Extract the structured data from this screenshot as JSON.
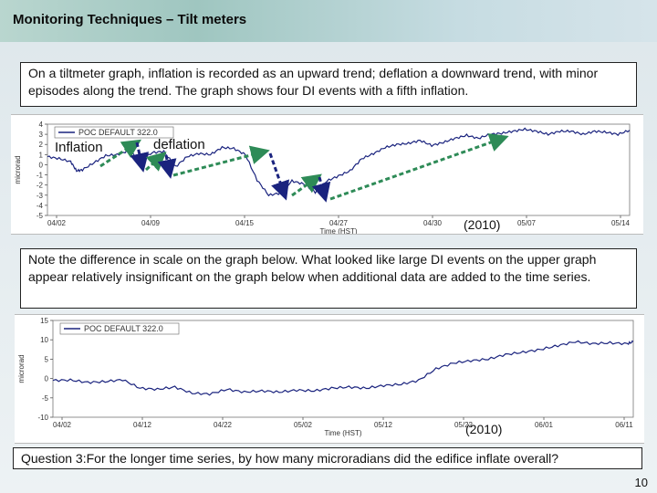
{
  "slide": {
    "title": "Monitoring Techniques – Tilt meters",
    "top_text": "On a tiltmeter graph, inflation is recorded as an upward trend; deflation a downward trend, with minor episodes along the trend. The graph shows four DI events with a fifth inflation.",
    "middle_text": "Note the difference in scale on the graph below. What looked like large DI events on the upper graph appear relatively insignificant on the graph below when additional data are added to the time series.",
    "question": "Question 3:For the longer time series, by how many microradians did the edifice inflate overall?",
    "page_number": "10",
    "label_inflation": "Inflation",
    "label_deflation": "deflation",
    "year_top": "(2010)",
    "year_bottom": "(2010)",
    "colors": {
      "trace": "#1a237e",
      "arrow": "#2e8b57",
      "arrow_dark": "#1a237e"
    }
  },
  "chart_data": [
    {
      "type": "line",
      "legend": "POC DEFAULT 322.0",
      "ylabel": "microrad",
      "xlabel": "Time (HST)",
      "ylim": [
        -5,
        4
      ],
      "yticks": [
        "4",
        "3",
        "2",
        "1",
        "0",
        "-1",
        "-2",
        "-3",
        "-4",
        "-5"
      ],
      "xticks": [
        "04/02",
        "04/09",
        "04/15",
        "04/27",
        "04/30",
        "05/07",
        "05/14"
      ],
      "series": [
        {
          "x": [
            0,
            2,
            4,
            5,
            6,
            8,
            10,
            12,
            14,
            16,
            18,
            20,
            22,
            24,
            26,
            28,
            30,
            32,
            34,
            36,
            38,
            40,
            42,
            44,
            46,
            48,
            50,
            52,
            54,
            56,
            58,
            60,
            62,
            64,
            66,
            68,
            70,
            72,
            74,
            76,
            78,
            80,
            82,
            84,
            86,
            88,
            90,
            92,
            94,
            96,
            98,
            100
          ],
          "y": [
            0.8,
            0.6,
            0.3,
            -0.6,
            -0.5,
            0.2,
            0.9,
            1.0,
            1.4,
            0.4,
            1.2,
            1.3,
            -0.2,
            0.8,
            1.1,
            1.0,
            1.7,
            1.6,
            1.0,
            -1.5,
            -3.0,
            -2.8,
            -1.6,
            -1.9,
            -2.7,
            -1.6,
            -1.1,
            -0.6,
            0.6,
            1.1,
            1.7,
            2.0,
            2.1,
            2.4,
            1.9,
            2.2,
            2.6,
            2.9,
            2.6,
            3.0,
            3.1,
            3.3,
            3.5,
            3.3,
            3.0,
            3.3,
            3.3,
            3.0,
            3.3,
            3.2,
            3.0,
            3.4
          ]
        }
      ]
    },
    {
      "type": "line",
      "legend": "POC DEFAULT 322.0",
      "ylabel": "microrad",
      "xlabel": "Time (HST)",
      "ylim": [
        -10,
        15
      ],
      "yticks": [
        "15",
        "10",
        "5",
        "0",
        "-5",
        "-10"
      ],
      "xticks": [
        "04/02",
        "04/12",
        "04/22",
        "05/02",
        "05/12",
        "05/22",
        "06/01",
        "06/11"
      ],
      "series": [
        {
          "x": [
            0,
            3,
            6,
            9,
            12,
            15,
            18,
            21,
            24,
            27,
            30,
            33,
            36,
            39,
            42,
            45,
            48,
            51,
            54,
            57,
            60,
            63,
            66,
            69,
            72,
            75,
            78,
            81,
            84,
            87,
            90,
            93,
            96,
            99,
            100
          ],
          "y": [
            -0.5,
            -0.4,
            -1.0,
            -0.8,
            -0.3,
            -2.5,
            -2.8,
            -2.2,
            -3.8,
            -4.0,
            -2.8,
            -3.5,
            -3.2,
            -3.5,
            -3.0,
            -3.2,
            -2.5,
            -2.2,
            -2.5,
            -1.8,
            -1.5,
            -0.5,
            2.5,
            4.0,
            4.6,
            5.0,
            6.2,
            6.8,
            7.5,
            8.5,
            9.5,
            9.0,
            9.2,
            9.0,
            9.5
          ]
        }
      ]
    }
  ]
}
